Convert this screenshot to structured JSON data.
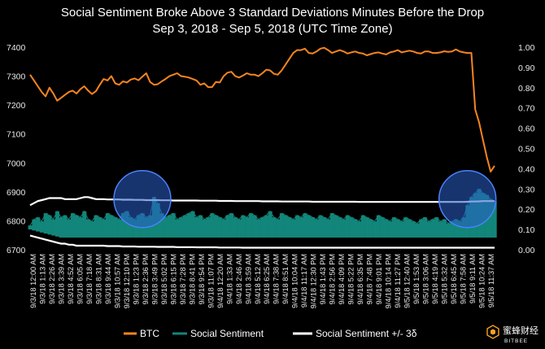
{
  "chart_data": {
    "type": "line",
    "title": "Social Sentiment Broke Above 3 Standard Deviations Minutes Before the Drop",
    "subtitle": "Sep 3, 2018 - Sep 5, 2018 (UTC Time Zone)",
    "y_left": {
      "ylim": [
        6700,
        7400
      ],
      "ticks": [
        6700,
        6800,
        6900,
        7000,
        7100,
        7200,
        7300,
        7400
      ]
    },
    "y_right": {
      "ylim": [
        0.0,
        1.0
      ],
      "ticks": [
        "0.00",
        "0.10",
        "0.20",
        "0.30",
        "0.40",
        "0.50",
        "0.60",
        "0.70",
        "0.80",
        "0.90",
        "1.00"
      ]
    },
    "x_tick_labels": [
      "9/3/18 12:00 AM",
      "9/3/18 1:13 AM",
      "9/3/18 2:26 AM",
      "9/3/18 3:39 AM",
      "9/3/18 4:52 AM",
      "9/3/18 6:05 AM",
      "9/3/18 7:18 AM",
      "9/3/18 8:31 AM",
      "9/3/18 9:44 AM",
      "9/3/18 10:57 AM",
      "9/3/18 12:10 PM",
      "9/3/18 1:23 PM",
      "9/3/18 2:36 PM",
      "9/3/18 3:49 PM",
      "9/3/18 5:02 PM",
      "9/3/18 6:15 PM",
      "9/3/18 7:28 PM",
      "9/3/18 8:41 PM",
      "9/3/18 9:54 PM",
      "9/3/18 11:07 PM",
      "9/4/18 12:20 AM",
      "9/4/18 1:33 AM",
      "9/4/18 2:46 AM",
      "9/4/18 3:59 AM",
      "9/4/18 5:12 AM",
      "9/4/18 6:25 AM",
      "9/4/18 7:38 AM",
      "9/4/18 8:51 AM",
      "9/4/18 10:04 AM",
      "9/4/18 11:17 AM",
      "9/4/18 12:30 PM",
      "9/4/18 1:43 PM",
      "9/4/18 2:56 PM",
      "9/4/18 4:09 PM",
      "9/4/18 5:22 PM",
      "9/4/18 6:35 PM",
      "9/4/18 7:48 PM",
      "9/4/18 9:01 PM",
      "9/4/18 10:14 PM",
      "9/4/18 11:27 PM",
      "9/5/18 12:40 AM",
      "9/5/18 1:53 AM",
      "9/5/18 3:06 AM",
      "9/5/18 4:19 AM",
      "9/5/18 5:32 AM",
      "9/5/18 6:45 AM",
      "9/5/18 7:58 AM",
      "9/5/18 9:11 AM",
      "9/5/18 10:24 AM",
      "9/5/18 11:37 AM"
    ],
    "series": [
      {
        "name": "BTC",
        "axis": "left",
        "color": "#f7851f",
        "values": [
          7305,
          7285,
          7265,
          7245,
          7230,
          7260,
          7240,
          7215,
          7225,
          7235,
          7245,
          7250,
          7240,
          7255,
          7265,
          7250,
          7238,
          7248,
          7270,
          7290,
          7285,
          7300,
          7275,
          7270,
          7282,
          7278,
          7288,
          7292,
          7286,
          7298,
          7310,
          7280,
          7270,
          7272,
          7282,
          7290,
          7300,
          7305,
          7310,
          7300,
          7298,
          7295,
          7290,
          7285,
          7270,
          7275,
          7262,
          7262,
          7280,
          7278,
          7300,
          7312,
          7315,
          7300,
          7295,
          7302,
          7310,
          7305,
          7305,
          7300,
          7310,
          7322,
          7320,
          7308,
          7305,
          7320,
          7340,
          7360,
          7380,
          7390,
          7390,
          7395,
          7380,
          7378,
          7385,
          7395,
          7398,
          7390,
          7380,
          7385,
          7390,
          7385,
          7378,
          7382,
          7385,
          7380,
          7378,
          7372,
          7376,
          7380,
          7382,
          7378,
          7375,
          7382,
          7385,
          7390,
          7382,
          7385,
          7388,
          7385,
          7380,
          7378,
          7385,
          7385,
          7380,
          7380,
          7382,
          7386,
          7384,
          7385,
          7392,
          7385,
          7382,
          7380,
          7380,
          7185,
          7140,
          7080,
          7020,
          6970,
          6990
        ]
      },
      {
        "name": "Social Sentiment",
        "axis": "right",
        "color": "#12867a",
        "values": [
          0.12,
          0.15,
          0.16,
          0.14,
          0.18,
          0.17,
          0.15,
          0.19,
          0.16,
          0.17,
          0.15,
          0.18,
          0.17,
          0.16,
          0.19,
          0.15,
          0.14,
          0.17,
          0.16,
          0.15,
          0.18,
          0.17,
          0.16,
          0.15,
          0.18,
          0.19,
          0.16,
          0.15,
          0.17,
          0.18,
          0.16,
          0.17,
          0.26,
          0.23,
          0.18,
          0.16,
          0.17,
          0.18,
          0.15,
          0.16,
          0.17,
          0.18,
          0.19,
          0.16,
          0.17,
          0.15,
          0.16,
          0.18,
          0.17,
          0.16,
          0.15,
          0.17,
          0.18,
          0.16,
          0.15,
          0.17,
          0.16,
          0.18,
          0.17,
          0.15,
          0.16,
          0.17,
          0.19,
          0.16,
          0.15,
          0.18,
          0.17,
          0.16,
          0.15,
          0.17,
          0.16,
          0.18,
          0.17,
          0.16,
          0.15,
          0.17,
          0.16,
          0.15,
          0.18,
          0.17,
          0.16,
          0.15,
          0.17,
          0.16,
          0.15,
          0.14,
          0.17,
          0.16,
          0.15,
          0.14,
          0.17,
          0.16,
          0.15,
          0.14,
          0.16,
          0.15,
          0.14,
          0.16,
          0.15,
          0.14,
          0.13,
          0.15,
          0.16,
          0.14,
          0.15,
          0.16,
          0.14,
          0.15,
          0.13,
          0.14,
          0.15,
          0.14,
          0.16,
          0.22,
          0.26,
          0.28,
          0.3,
          0.28,
          0.27,
          0.25,
          0.24
        ]
      },
      {
        "name": "Social Sentiment +/- 3δ",
        "axis": "right",
        "color": "#ffffff",
        "upper": [
          0.22,
          0.23,
          0.24,
          0.245,
          0.25,
          0.255,
          0.255,
          0.255,
          0.255,
          0.25,
          0.25,
          0.25,
          0.25,
          0.255,
          0.26,
          0.26,
          0.255,
          0.25,
          0.25,
          0.25,
          0.248,
          0.248,
          0.248,
          0.248,
          0.247,
          0.247,
          0.247,
          0.246,
          0.246,
          0.246,
          0.245,
          0.245,
          0.245,
          0.245,
          0.244,
          0.244,
          0.244,
          0.243,
          0.243,
          0.243,
          0.243,
          0.243,
          0.243,
          0.243,
          0.242,
          0.242,
          0.242,
          0.242,
          0.242,
          0.241,
          0.241,
          0.241,
          0.241,
          0.24,
          0.24,
          0.24,
          0.24,
          0.24,
          0.24,
          0.24,
          0.239,
          0.239,
          0.239,
          0.239,
          0.239,
          0.238,
          0.238,
          0.238,
          0.238,
          0.238,
          0.238,
          0.238,
          0.238,
          0.237,
          0.237,
          0.237,
          0.237,
          0.237,
          0.237,
          0.237,
          0.237,
          0.237,
          0.237,
          0.237,
          0.237,
          0.236,
          0.236,
          0.236,
          0.236,
          0.236,
          0.236,
          0.236,
          0.236,
          0.236,
          0.236,
          0.236,
          0.236,
          0.236,
          0.236,
          0.236,
          0.236,
          0.236,
          0.236,
          0.236,
          0.236,
          0.236,
          0.236,
          0.236,
          0.236,
          0.236,
          0.236,
          0.236,
          0.236,
          0.237,
          0.238,
          0.238,
          0.239,
          0.24,
          0.24,
          0.24,
          0.24
        ],
        "lower": [
          0.07,
          0.065,
          0.06,
          0.055,
          0.05,
          0.045,
          0.04,
          0.035,
          0.03,
          0.03,
          0.025,
          0.025,
          0.02,
          0.02,
          0.02,
          0.02,
          0.02,
          0.02,
          0.02,
          0.02,
          0.018,
          0.018,
          0.018,
          0.018,
          0.016,
          0.016,
          0.016,
          0.016,
          0.015,
          0.015,
          0.015,
          0.015,
          0.015,
          0.014,
          0.014,
          0.014,
          0.014,
          0.014,
          0.013,
          0.013,
          0.013,
          0.013,
          0.013,
          0.012,
          0.012,
          0.012,
          0.012,
          0.012,
          0.012,
          0.011,
          0.011,
          0.011,
          0.011,
          0.011,
          0.011,
          0.01,
          0.01,
          0.01,
          0.01,
          0.01,
          0.01,
          0.01,
          0.01,
          0.01,
          0.01,
          0.01,
          0.01,
          0.01,
          0.01,
          0.01,
          0.01,
          0.01,
          0.01,
          0.01,
          0.01,
          0.01,
          0.01,
          0.01,
          0.01,
          0.01,
          0.01,
          0.01,
          0.01,
          0.01,
          0.01,
          0.01,
          0.01,
          0.01,
          0.01,
          0.01,
          0.01,
          0.01,
          0.01,
          0.01,
          0.01,
          0.01,
          0.01,
          0.01,
          0.01,
          0.01,
          0.01,
          0.01,
          0.01,
          0.01,
          0.01,
          0.01,
          0.01,
          0.01,
          0.01,
          0.01,
          0.01,
          0.01,
          0.01,
          0.01,
          0.01,
          0.01,
          0.01,
          0.01,
          0.01,
          0.01,
          0.01
        ]
      }
    ],
    "highlights": [
      {
        "x_index": 29,
        "y_right": 0.25,
        "color": "#2a5fc8"
      },
      {
        "x_index": 113,
        "y_right": 0.25,
        "color": "#2a5fc8"
      }
    ],
    "legend": {
      "placement": "bottom",
      "items": [
        "BTC",
        "Social Sentiment",
        "Social Sentiment +/- 3δ"
      ]
    }
  },
  "logo": {
    "text_cn": "蜜蜂财经",
    "text_en": "BITBEE",
    "icon": "bee-hexagon-icon"
  },
  "colors": {
    "background": "#000000",
    "btc": "#f7851f",
    "sentiment": "#12867a",
    "band": "#ffffff",
    "highlight": "#2a5fc8"
  }
}
